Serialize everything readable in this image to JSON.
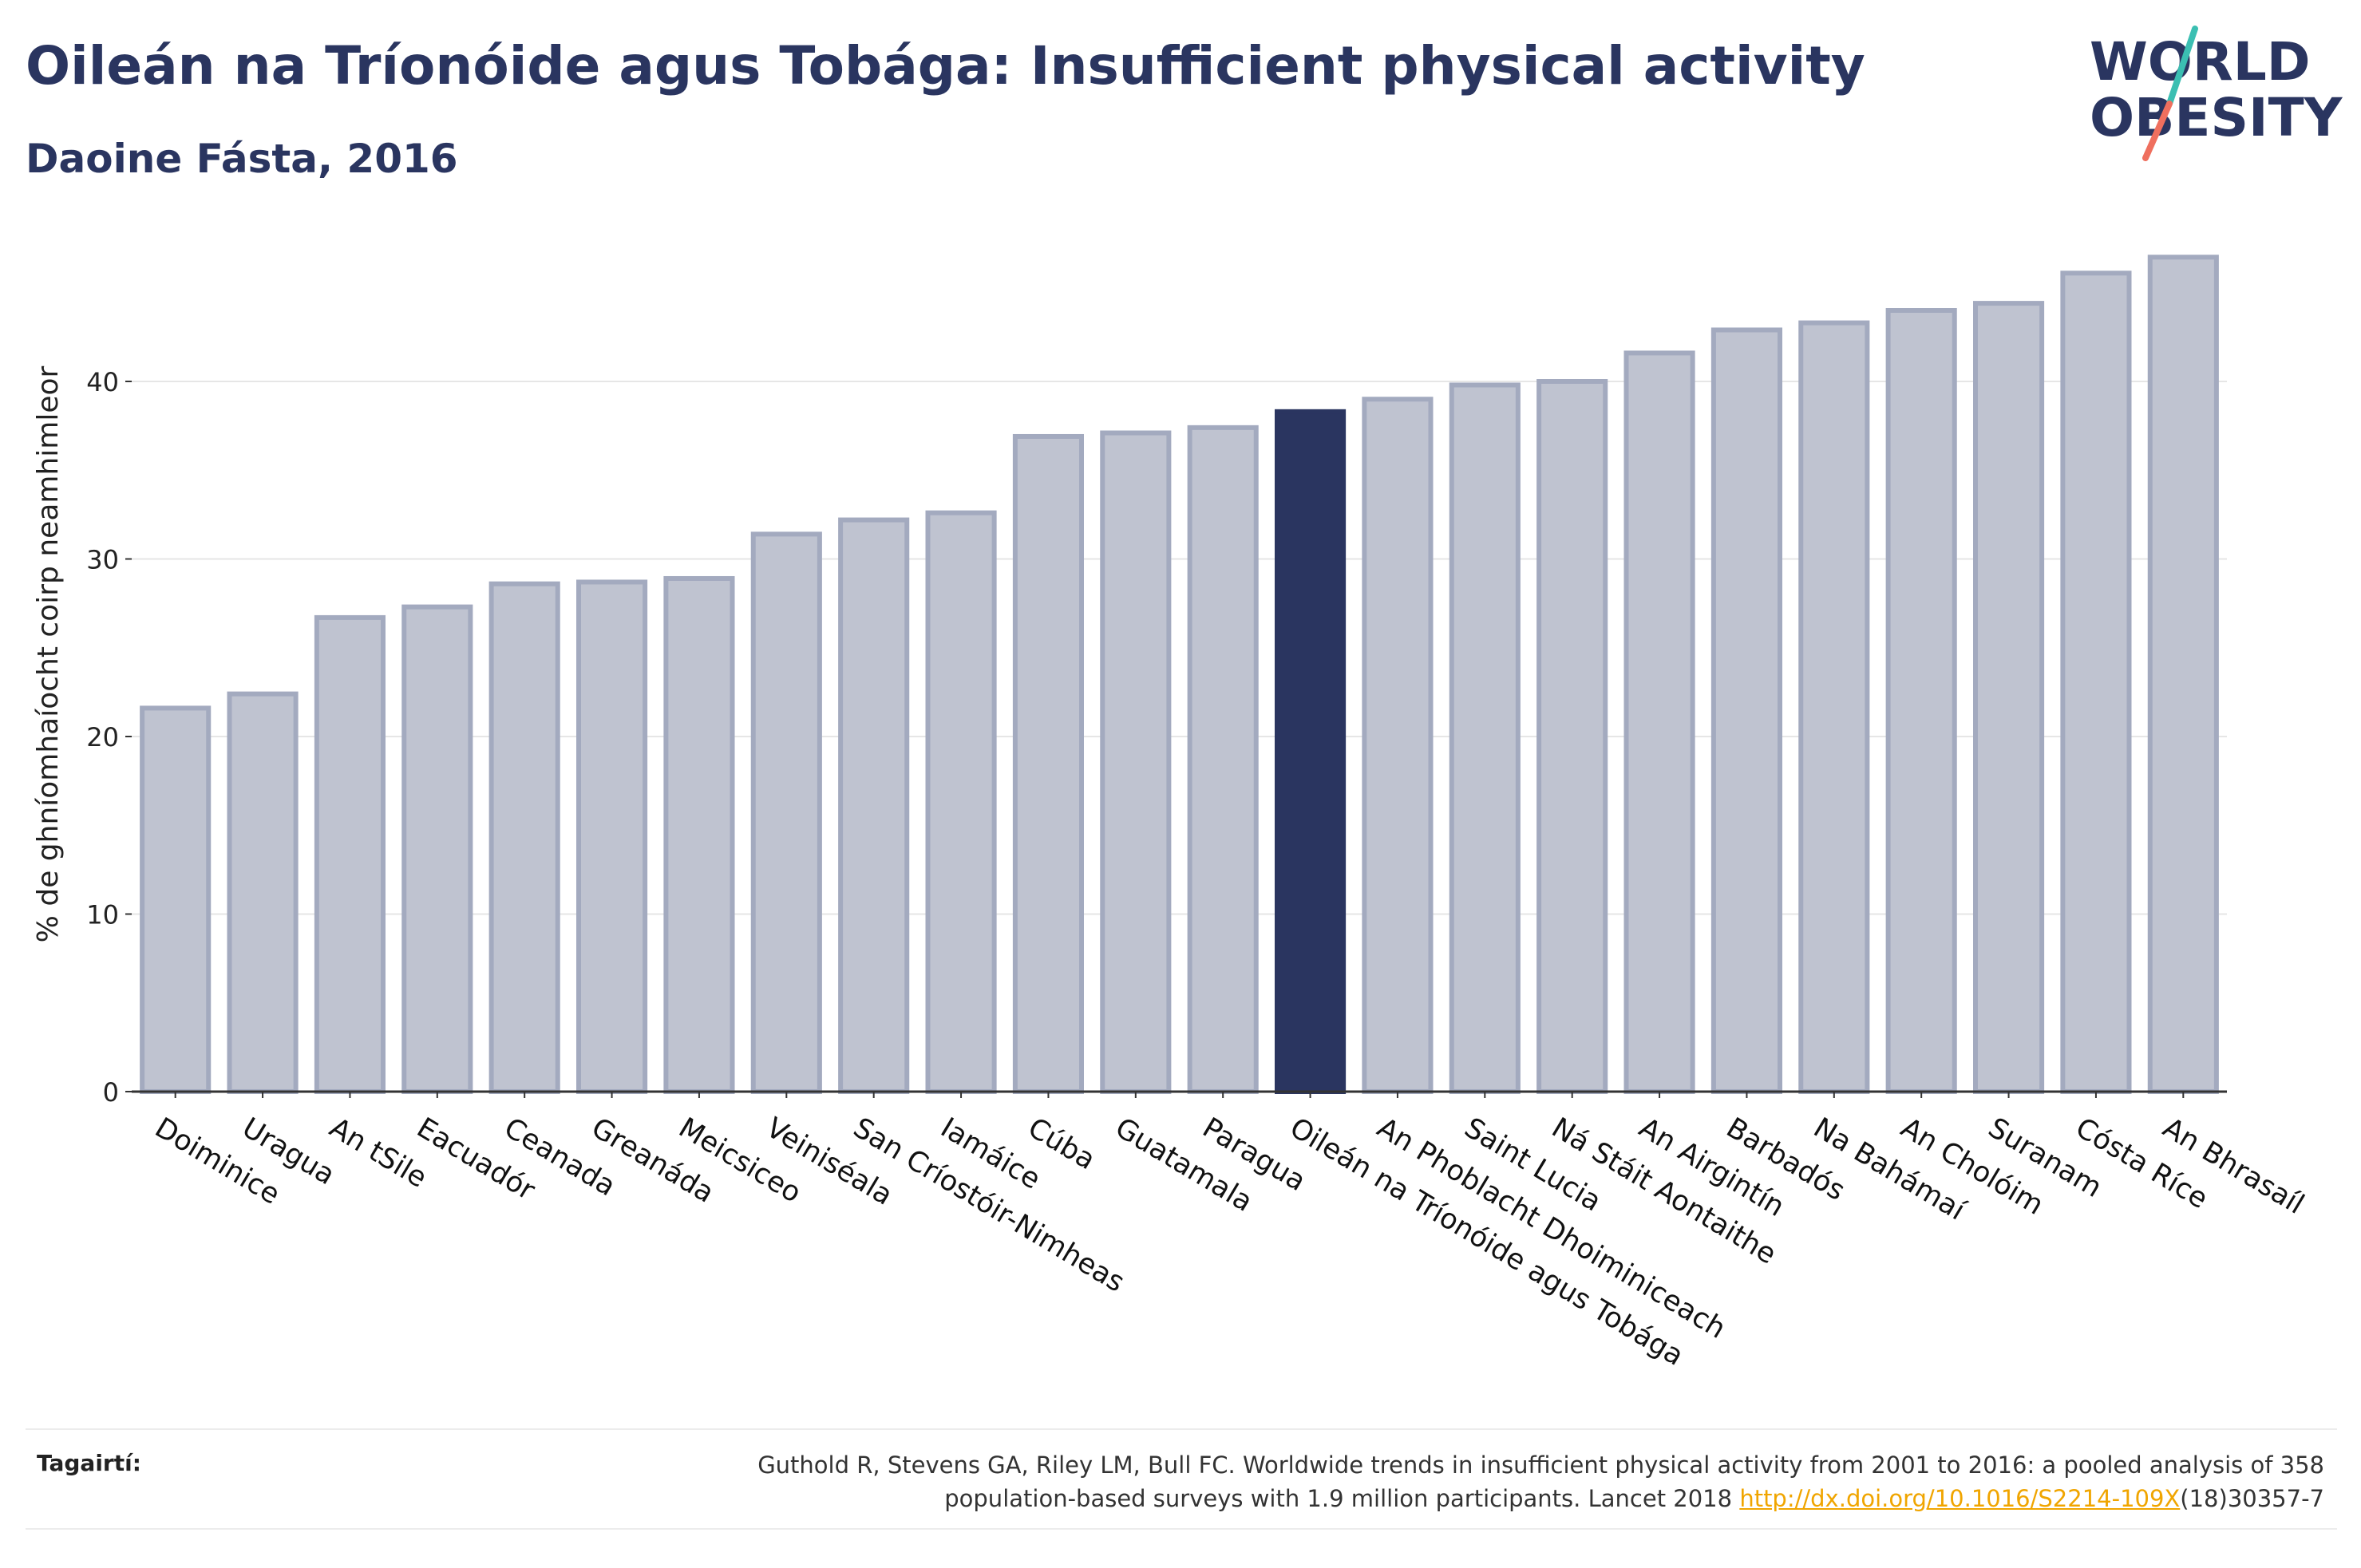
{
  "header": {
    "title": "Oileán na Tríonóide agus Tobága: Insufficient physical activity",
    "subtitle": "Daoine Fásta, 2016"
  },
  "logo": {
    "line1": "WORLD",
    "line2": "OBESITY"
  },
  "chart_data": {
    "type": "bar",
    "ylabel": "% de ghníomhaíocht coirp neamhimleor",
    "ylim": [
      0,
      48
    ],
    "yticks": [
      0,
      10,
      20,
      30,
      40
    ],
    "grid": true,
    "categories": [
      "Doiminice",
      "Uragua",
      "An tSile",
      "Eacuadór",
      "Ceanada",
      "Greanáda",
      "Meicsiceo",
      "Veiniséala",
      "San Críostóir-Nimheas",
      "Iamáice",
      "Cúba",
      "Guatamala",
      "Paragua",
      "Oileán na Tríonóide agus Tobága",
      "An Phoblacht Dhoiminiceach",
      "Saint Lucia",
      "Ná Stáit Aontaithe",
      "An Airgintín",
      "Barbadós",
      "Na Bahámaí",
      "An Cholóim",
      "Suranam",
      "Cósta Ríce",
      "An Bhrasaíl"
    ],
    "values": [
      21.6,
      22.4,
      26.7,
      27.3,
      28.6,
      28.7,
      28.9,
      31.4,
      32.2,
      32.6,
      36.9,
      37.1,
      37.4,
      38.3,
      39.0,
      39.8,
      40.0,
      41.6,
      42.9,
      43.3,
      44.0,
      44.4,
      46.1,
      47.0
    ],
    "highlight": "Oileán na Tríonóide agus Tobága",
    "colors": {
      "bar": "#bfc3d0",
      "bar_border": "#a3aabf",
      "highlight": "#2a3560",
      "axis": "#333333",
      "grid": "#e6e6e6"
    }
  },
  "footer": {
    "label": "Tagairtí:",
    "reference_line1": "Guthold R, Stevens GA, Riley LM, Bull FC. Worldwide trends in insufficient physical activity from 2001 to 2016: a pooled analysis of 358",
    "reference_line2_pre": "population-based surveys with 1.9 million participants. Lancet 2018 ",
    "reference_link": "http://dx.doi.org/10.1016/S2214-109X",
    "reference_line2_post": "(18)30357-7"
  }
}
